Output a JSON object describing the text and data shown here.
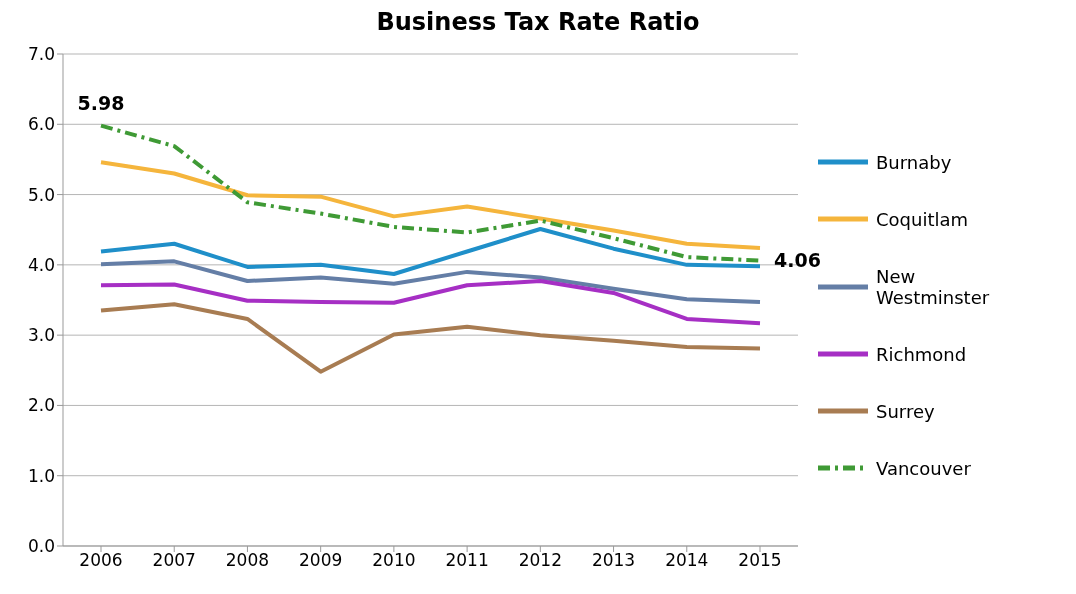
{
  "chart_data": {
    "type": "line",
    "title": "Business Tax Rate Ratio",
    "categories": [
      "2006",
      "2007",
      "2008",
      "2009",
      "2010",
      "2011",
      "2012",
      "2013",
      "2014",
      "2015"
    ],
    "series": [
      {
        "name": "Burnaby",
        "color": "#1f8fc9",
        "values": [
          4.19,
          4.3,
          3.97,
          4.0,
          3.87,
          4.19,
          4.51,
          4.23,
          4.0,
          3.98
        ]
      },
      {
        "name": "Coquitlam",
        "color": "#f5b53c",
        "values": [
          5.46,
          5.3,
          4.99,
          4.97,
          4.69,
          4.83,
          4.66,
          4.49,
          4.3,
          4.24
        ]
      },
      {
        "name": "New Westminster",
        "color": "#647ea6",
        "values": [
          4.01,
          4.05,
          3.77,
          3.82,
          3.73,
          3.9,
          3.82,
          3.66,
          3.51,
          3.47
        ]
      },
      {
        "name": "Richmond",
        "color": "#a62fc4",
        "values": [
          3.71,
          3.72,
          3.49,
          3.47,
          3.46,
          3.71,
          3.77,
          3.6,
          3.23,
          3.17
        ]
      },
      {
        "name": "Surrey",
        "color": "#a87c52",
        "values": [
          3.35,
          3.44,
          3.23,
          2.48,
          3.01,
          3.12,
          3.0,
          2.92,
          2.83,
          2.81
        ]
      },
      {
        "name": "Vancouver",
        "color": "#3f9a35",
        "line_style": "dashed",
        "values": [
          5.98,
          5.69,
          4.89,
          4.73,
          4.54,
          4.46,
          4.63,
          4.38,
          4.11,
          4.06
        ]
      }
    ],
    "ylim": [
      0,
      7
    ],
    "yticks": [
      {
        "value": 0,
        "label": "0.0"
      },
      {
        "value": 1,
        "label": "1.0"
      },
      {
        "value": 2,
        "label": "2.0"
      },
      {
        "value": 3,
        "label": "3.0"
      },
      {
        "value": 4,
        "label": "4.0"
      },
      {
        "value": 5,
        "label": "5.0"
      },
      {
        "value": 6,
        "label": "6.0"
      },
      {
        "value": 7,
        "label": "7.0"
      }
    ],
    "annotations": [
      {
        "text": "5.98",
        "x": "2006",
        "y": 5.98
      },
      {
        "text": "4.06",
        "x": "2015",
        "y": 4.06
      }
    ],
    "grid": "y",
    "legend": "right",
    "marker": "none",
    "line_style": "solid"
  }
}
